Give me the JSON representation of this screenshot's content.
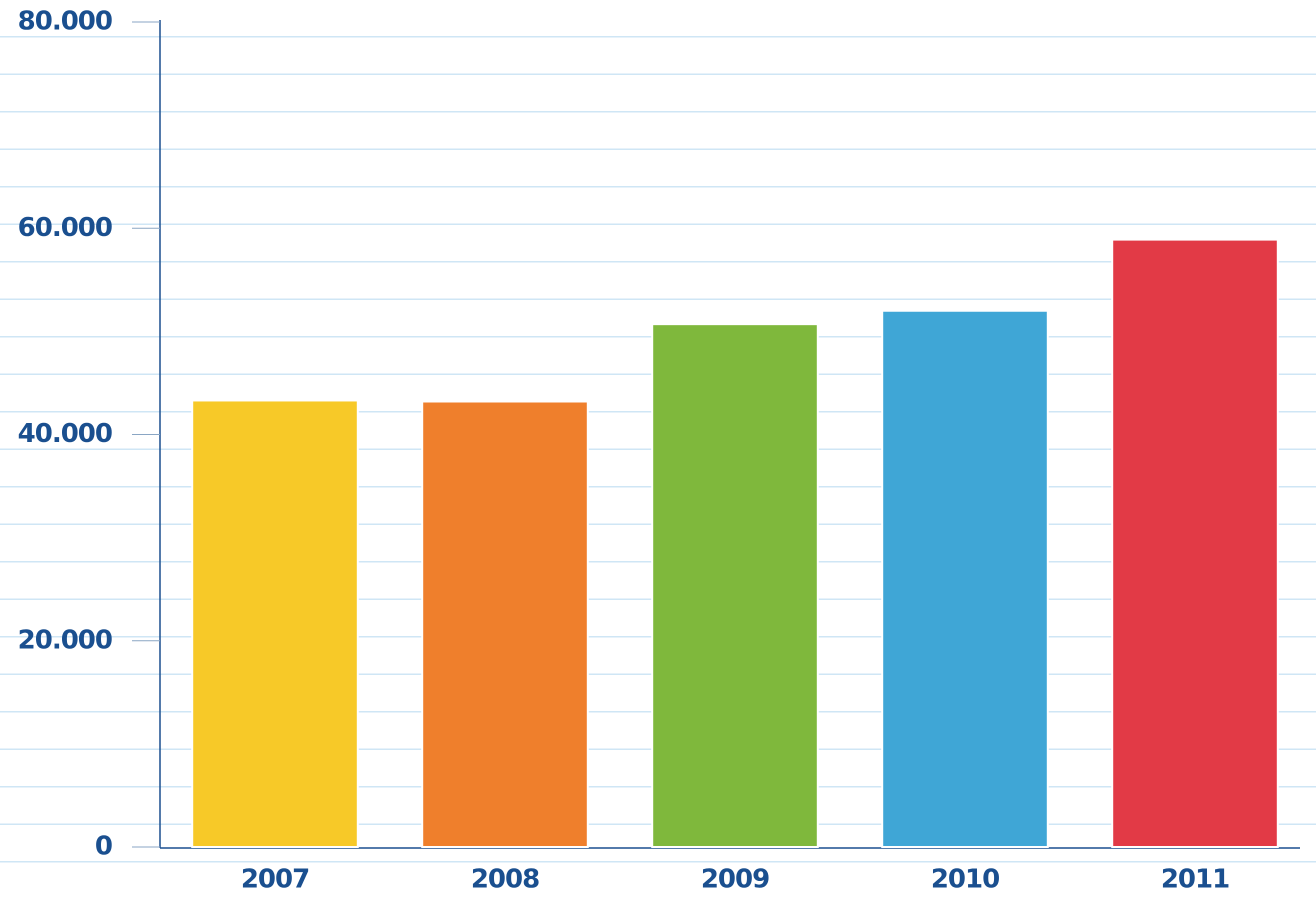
{
  "chart_data": {
    "type": "bar",
    "categories": [
      "2007",
      "2008",
      "2009",
      "2010",
      "2011"
    ],
    "values": [
      43300,
      43200,
      50700,
      52000,
      58900
    ],
    "colors": [
      "#f7c928",
      "#ef7f2c",
      "#7fb83c",
      "#3fa6d6",
      "#e23a46"
    ],
    "ylim": [
      0,
      80000
    ],
    "yticks": [
      0,
      {
        "value": 20000,
        "label": "20.000"
      },
      {
        "value": 40000,
        "label": "40.000"
      },
      {
        "value": 60000,
        "label": "60.000"
      },
      {
        "value": 80000,
        "label": "80.000"
      }
    ]
  }
}
